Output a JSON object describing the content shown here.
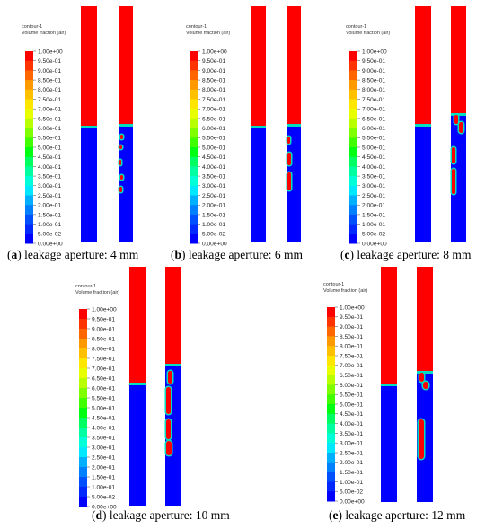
{
  "legend": {
    "contour_name": "contour-1",
    "quantity": "Volume fraction (air)",
    "ticks": [
      "1.00e+00",
      "9.50e-01",
      "9.00e-01",
      "8.50e-01",
      "8.00e-01",
      "7.50e-01",
      "7.00e-01",
      "6.50e-01",
      "6.00e-01",
      "5.50e-01",
      "5.00e-01",
      "4.50e-01",
      "4.00e-01",
      "3.50e-01",
      "3.00e-01",
      "2.50e-01",
      "2.00e-01",
      "1.50e-01",
      "1.00e-01",
      "5.00e-02",
      "0.00e+00"
    ],
    "colors": [
      "#ff0000",
      "#ff3300",
      "#ff6600",
      "#ff9900",
      "#ffc000",
      "#ffe600",
      "#e8ff00",
      "#b8ff00",
      "#80ff00",
      "#40ff00",
      "#00ff10",
      "#00ff60",
      "#00ffa0",
      "#00ffd8",
      "#00e8ff",
      "#00b0ff",
      "#0080ff",
      "#0050ff",
      "#0028ff",
      "#0000ff"
    ]
  },
  "colors": {
    "air": "#ff0000",
    "water": "#0000ff",
    "interface": "#00e0c0"
  },
  "panels": [
    {
      "label": "a",
      "caption": "leakage aperture: 4 mm"
    },
    {
      "label": "b",
      "caption": "leakage aperture: 6 mm"
    },
    {
      "label": "c",
      "caption": "leakage aperture: 8 mm"
    },
    {
      "label": "d",
      "caption": "leakage aperture: 10 mm"
    },
    {
      "label": "e",
      "caption": "leakage aperture: 12 mm"
    }
  ]
}
